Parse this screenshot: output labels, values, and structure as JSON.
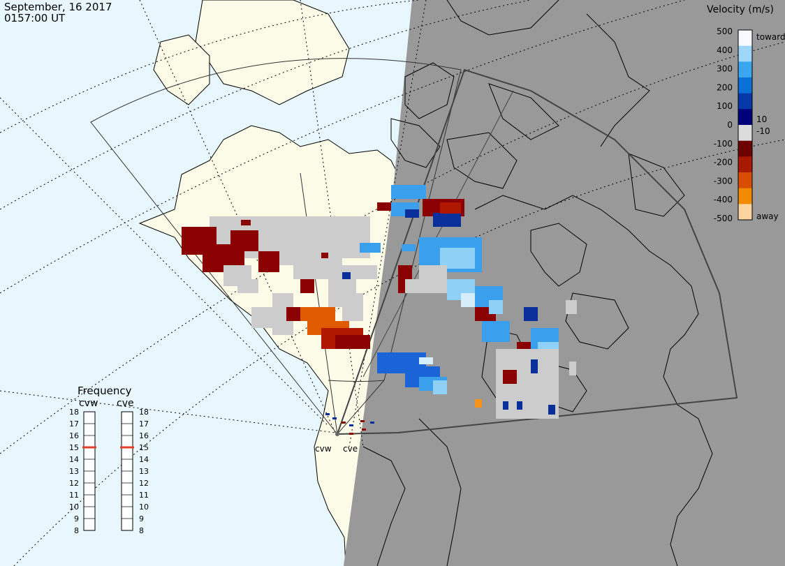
{
  "header": {
    "date": "September, 16 2017",
    "time": "0157:00 UT"
  },
  "velocity_scale": {
    "title": "Velocity (m/s)",
    "ticks": [
      "500",
      "400",
      "300",
      "200",
      "100",
      "0",
      "-100",
      "-200",
      "-300",
      "-400",
      "-500"
    ],
    "inner_labels": [
      "10",
      "-10"
    ],
    "toward_label": "toward",
    "away_label": "away",
    "colors": [
      "#f7fbff",
      "#9dd6f7",
      "#3aa6ee",
      "#0a6fd6",
      "#0638a8",
      "#00007a",
      "#dcdcdc",
      "#6d0000",
      "#a81a00",
      "#d84d00",
      "#f28a00",
      "#fdd3a0"
    ]
  },
  "frequency": {
    "title": "Frequency",
    "radars": [
      {
        "name": "cvw",
        "selected": 15
      },
      {
        "name": "cve",
        "selected": 15
      }
    ],
    "ticks": [
      "18",
      "17",
      "16",
      "15",
      "14",
      "13",
      "12",
      "11",
      "10",
      "9",
      "8"
    ],
    "marker_color": "#e0402a"
  },
  "sites": [
    {
      "name": "cvw"
    },
    {
      "name": "cve"
    }
  ],
  "colors": {
    "ocean": "#e8f6fd",
    "land": "#fbfbe8",
    "night": "#999999",
    "gray_scatter": "#cccccc"
  }
}
